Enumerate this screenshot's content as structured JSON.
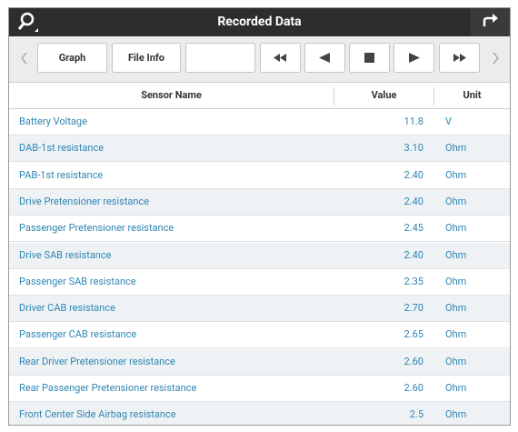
{
  "header": {
    "title": "Recorded Data"
  },
  "toolbar": {
    "buttons": [
      "Graph",
      "File Info"
    ]
  },
  "table": {
    "columns": [
      "Sensor Name",
      "Value",
      "Unit"
    ],
    "rows": [
      [
        "Battery Voltage",
        "11.8",
        "V"
      ],
      [
        "DAB-1st resistance",
        "3.10",
        "Ohm"
      ],
      [
        "PAB-1st resistance",
        "2.40",
        "Ohm"
      ],
      [
        "Drive Pretensioner resistance",
        "2.40",
        "Ohm"
      ],
      [
        "Passenger Pretensioner resistance",
        "2.45",
        "Ohm"
      ],
      [
        "Drive SAB resistance",
        "2.40",
        "Ohm"
      ],
      [
        "Passenger SAB resistance",
        "2.35",
        "Ohm"
      ],
      [
        "Driver CAB resistance",
        "2.70",
        "Ohm"
      ],
      [
        "Passenger CAB resistance",
        "2.65",
        "Ohm"
      ],
      [
        "Rear Driver Pretensioner resistance",
        "2.60",
        "Ohm"
      ],
      [
        "Rear Passenger Pretensioner resistance",
        "2.60",
        "Ohm"
      ],
      [
        "Front Center Side Airbag resistance",
        "2.5",
        "Ohm"
      ]
    ]
  }
}
